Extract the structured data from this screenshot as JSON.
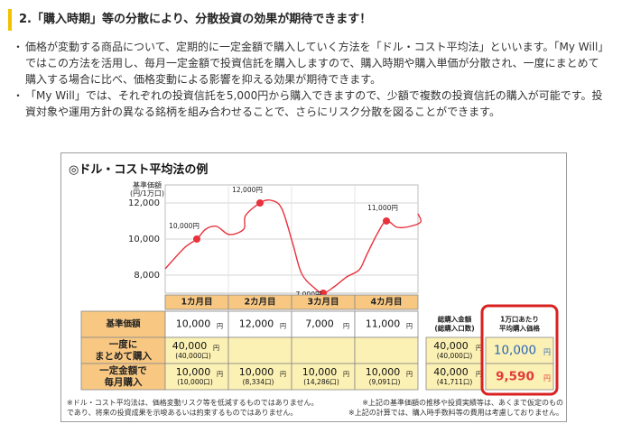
{
  "heading": "2.「購入時期」等の分散により、分散投資の効果が期待できます！",
  "bullets": [
    "価格が変動する商品について、定期的に一定金額で購入していく方法を「ドル・コスト平均法」といいます。「My Will」ではこの方法を活用し、毎月一定金額で投資信託を購入しますので、購入時期や購入単価が分散され、一度にまとめて購入する場合に比べ、価格変動による影響を抑える効果が期待できます。",
    "「My Will」では、それぞれの投資信託を5,000円から購入できますので、少額で複数の投資信託の購入が可能です。投資対象や運用方針の異なる銘柄を組み合わせることで、さらにリスク分散を図ることができます。"
  ],
  "figure": {
    "title": "◎ドル・コスト平均法の例",
    "notes_left_1": "※ドル・コスト平均法は、価格変動リスク等を低減するものではありません。",
    "notes_right_1": "※上記の基準価額の推移や投資実績等は、あくまで仮定のもの",
    "notes_left_2": "であり、将来の投資成果を示唆あるいは約束するものではありません。",
    "notes_right_2": "※上記の計算では、購入時手数料等の費用は考慮しておりません。"
  },
  "chart_data": {
    "type": "line",
    "ylabel": "基準価額\n(円/1万口)",
    "y_ticks": [
      "12,000",
      "10,000",
      "8,000"
    ],
    "ylim": [
      7000,
      13000
    ],
    "categories": [
      "1カ月目",
      "2カ月目",
      "3カ月目",
      "4カ月目"
    ],
    "points": [
      {
        "label": "10,000円",
        "value": 10000
      },
      {
        "label": "12,000円",
        "value": 12000
      },
      {
        "label": "7,000円",
        "value": 7000
      },
      {
        "label": "11,000円",
        "value": 11000
      }
    ],
    "grid": true
  },
  "table": {
    "row_label_1": "基準価額",
    "row_label_2": "一度に\nまとめて購入",
    "row_label_3": "一定金額で\n毎月購入",
    "prices": [
      "10,000",
      "12,000",
      "7,000",
      "11,000"
    ],
    "lump": {
      "amount": "40,000",
      "units": "(40,000口)"
    },
    "monthly": [
      {
        "amount": "10,000",
        "units": "(10,000口)"
      },
      {
        "amount": "10,000",
        "units": "(8,334口)"
      },
      {
        "amount": "10,000",
        "units": "(14,286口)"
      },
      {
        "amount": "10,000",
        "units": "(9,091口)"
      }
    ],
    "yen": "円",
    "total_header": "総購入金額\n(総購入口数)",
    "total_lump": {
      "amount": "40,000",
      "units": "(40,000口)"
    },
    "total_monthly": {
      "amount": "40,000",
      "units": "(41,711口)"
    },
    "avg_header": "1万口あたり\n平均購入価格",
    "avg_lump": "10,000",
    "avg_monthly": "9,590"
  },
  "colors": {
    "accent_bar": "#f2c100",
    "header_fill": "#f8c883",
    "row_fill": "#fcf1b4",
    "line": "#e8323c",
    "avg_blue": "#2966b8",
    "avg_red": "#e23a3a",
    "frame": "#d92121"
  }
}
